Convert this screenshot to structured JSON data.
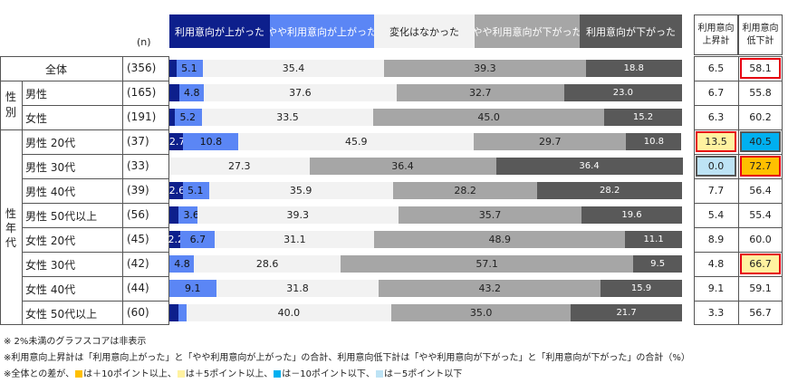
{
  "legend": [
    {
      "label": "利用意向が上がった",
      "color": "#0d1f8c",
      "text_color": "#ffffff"
    },
    {
      "label": "やや利用意向が上がった",
      "color": "#5b86f5",
      "text_color": "#ffffff"
    },
    {
      "label": "変化はなかった",
      "color": "#f2f2f2",
      "text_color": "#222222"
    },
    {
      "label": "やや利用意向が下がった",
      "color": "#a6a6a6",
      "text_color": "#ffffff"
    },
    {
      "label": "利用意向が下がった",
      "color": "#595959",
      "text_color": "#ffffff"
    }
  ],
  "n_header": "(n)",
  "sum_headers": {
    "up": [
      "利用意向",
      "上昇計"
    ],
    "down": [
      "利用意向",
      "低下計"
    ]
  },
  "group_labels": {
    "gender": [
      "性",
      "別"
    ],
    "age": [
      "性",
      "年",
      "代"
    ]
  },
  "chart_data": {
    "type": "bar",
    "orientation": "horizontal-stacked-100",
    "series": [
      {
        "name": "利用意向が上がった",
        "values": [
          1.4,
          1.9,
          1.1,
          2.7,
          0.0,
          2.6,
          1.8,
          2.2,
          0.0,
          0.0,
          1.7
        ]
      },
      {
        "name": "やや利用意向が上がった",
        "values": [
          5.1,
          4.8,
          5.2,
          10.8,
          0.0,
          5.1,
          3.6,
          6.7,
          4.8,
          9.1,
          1.6
        ]
      },
      {
        "name": "変化はなかった",
        "values": [
          35.4,
          37.6,
          33.5,
          45.9,
          27.3,
          35.9,
          39.3,
          31.1,
          28.6,
          31.8,
          40.0
        ]
      },
      {
        "name": "やや利用意向が下がった",
        "values": [
          39.3,
          32.7,
          45.0,
          29.7,
          36.4,
          28.2,
          35.7,
          48.9,
          57.1,
          43.2,
          35.0
        ]
      },
      {
        "name": "利用意向が下がった",
        "values": [
          18.8,
          23.0,
          15.2,
          10.8,
          36.4,
          28.2,
          19.6,
          11.1,
          9.5,
          15.9,
          21.7
        ]
      }
    ],
    "labels": [
      [
        "",
        "5.1",
        "35.4",
        "39.3",
        "18.8"
      ],
      [
        "",
        "4.8",
        "37.6",
        "32.7",
        "23.0"
      ],
      [
        "",
        "5.2",
        "33.5",
        "45.0",
        "15.2"
      ],
      [
        "2.7",
        "10.8",
        "45.9",
        "29.7",
        "10.8"
      ],
      [
        "",
        "",
        "27.3",
        "36.4",
        "36.4"
      ],
      [
        "2.6",
        "5.1",
        "35.9",
        "28.2",
        "28.2"
      ],
      [
        "",
        "3.6",
        "39.3",
        "35.7",
        "19.6"
      ],
      [
        "2.2",
        "6.7",
        "31.1",
        "48.9",
        "11.1"
      ],
      [
        "",
        "4.8",
        "28.6",
        "57.1",
        "9.5"
      ],
      [
        "",
        "9.1",
        "31.8",
        "43.2",
        "15.9"
      ],
      [
        "",
        "",
        "40.0",
        "35.0",
        "21.7"
      ]
    ],
    "categories": [
      "全体",
      "男性",
      "女性",
      "男性 20代",
      "男性 30代",
      "男性 40代",
      "男性 50代以上",
      "女性 20代",
      "女性 30代",
      "女性 40代",
      "女性 50代以上"
    ],
    "n": [
      "(356)",
      "(165)",
      "(191)",
      "(37)",
      "(33)",
      "(39)",
      "(56)",
      "(45)",
      "(42)",
      "(44)",
      "(60)"
    ],
    "up_total": [
      "6.5",
      "6.7",
      "6.3",
      "13.5",
      "0.0",
      "7.7",
      "5.4",
      "8.9",
      "4.8",
      "9.1",
      "3.3"
    ],
    "down_total": [
      "58.1",
      "55.8",
      "60.2",
      "40.5",
      "72.7",
      "56.4",
      "55.4",
      "60.0",
      "66.7",
      "59.1",
      "56.7"
    ],
    "up_highlight": [
      "",
      "",
      "",
      "+5",
      "-5",
      "",
      "",
      "",
      "",
      "",
      ""
    ],
    "down_highlight": [
      "total",
      "",
      "",
      "-10",
      "+10",
      "",
      "",
      "",
      "+5",
      "",
      ""
    ]
  },
  "highlight_colors": {
    "total": {
      "fill": "#ffffff",
      "border": "#e60012"
    },
    "+10": {
      "fill": "#ffc000",
      "border": "#e60012"
    },
    "+5": {
      "fill": "#fff2a0",
      "border": "#e60012"
    },
    "-10": {
      "fill": "#00b0f0",
      "border": "#555555"
    },
    "-5": {
      "fill": "#bde3f5",
      "border": "#555555"
    }
  },
  "notes": {
    "n1": "※ 2%未満のグラフスコアは非表示",
    "n2": "※利用意向上昇計は「利用意向上がった」と「やや利用意向が上がった」の合計、利用意向低下計は「やや利用意向が下がった」と「利用意向が下がった」の合計（%）",
    "n3a": "※全体との差が、",
    "n3b": "は＋10ポイント以上、",
    "n3c": "は＋5ポイント以上、",
    "n3d": "は－10ポイント以下、",
    "n3e": "は－5ポイント以下"
  }
}
